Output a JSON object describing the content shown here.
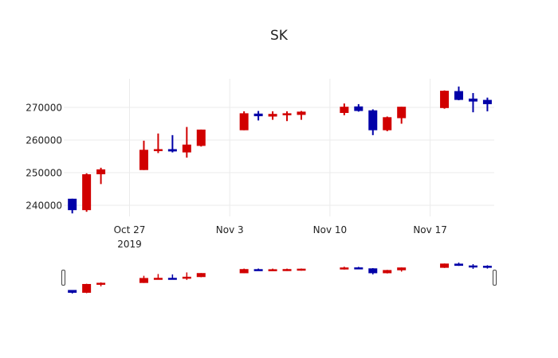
{
  "chart_data": {
    "type": "candlestick",
    "title": "SK",
    "xlabel": "",
    "ylabel": "",
    "ylim": [
      236500,
      279500
    ],
    "y_ticks": [
      240000,
      250000,
      260000,
      270000
    ],
    "y_tick_labels": [
      "240000",
      "250000",
      "260000",
      "270000"
    ],
    "x_ticks": [
      "2019-10-27",
      "2019-11-03",
      "2019-11-10",
      "2019-11-17"
    ],
    "x_tick_labels": [
      [
        "Oct 27",
        "2019"
      ],
      [
        "Nov 3"
      ],
      [
        "Nov 10"
      ],
      [
        "Nov 17"
      ]
    ],
    "grid": true,
    "legend": null,
    "increasing_color": "#d10000",
    "decreasing_color": "#0000a8",
    "rangeslider": true,
    "series": [
      {
        "date": "2019-10-23",
        "open": 242000,
        "high": 242000,
        "low": 237500,
        "close": 238500
      },
      {
        "date": "2019-10-24",
        "open": 238500,
        "high": 249800,
        "low": 238000,
        "close": 249500
      },
      {
        "date": "2019-10-25",
        "open": 249500,
        "high": 251500,
        "low": 246500,
        "close": 251000
      },
      {
        "date": "2019-10-28",
        "open": 250800,
        "high": 259800,
        "low": 250800,
        "close": 257000
      },
      {
        "date": "2019-10-29",
        "open": 256800,
        "high": 262000,
        "low": 256000,
        "close": 257200
      },
      {
        "date": "2019-10-30",
        "open": 257200,
        "high": 261500,
        "low": 256200,
        "close": 256500
      },
      {
        "date": "2019-10-31",
        "open": 256200,
        "high": 264000,
        "low": 254600,
        "close": 258600
      },
      {
        "date": "2019-11-01",
        "open": 258200,
        "high": 263200,
        "low": 258000,
        "close": 263200
      },
      {
        "date": "2019-11-04",
        "open": 263000,
        "high": 268800,
        "low": 263000,
        "close": 268200
      },
      {
        "date": "2019-11-05",
        "open": 268100,
        "high": 268900,
        "low": 266000,
        "close": 267300
      },
      {
        "date": "2019-11-06",
        "open": 267200,
        "high": 268800,
        "low": 266200,
        "close": 268000
      },
      {
        "date": "2019-11-07",
        "open": 267700,
        "high": 268800,
        "low": 265800,
        "close": 268200
      },
      {
        "date": "2019-11-08",
        "open": 267700,
        "high": 268900,
        "low": 266200,
        "close": 268700
      },
      {
        "date": "2019-11-11",
        "open": 268300,
        "high": 271200,
        "low": 267600,
        "close": 270200
      },
      {
        "date": "2019-11-12",
        "open": 270300,
        "high": 271000,
        "low": 268700,
        "close": 268900
      },
      {
        "date": "2019-11-13",
        "open": 269100,
        "high": 269400,
        "low": 261500,
        "close": 263000
      },
      {
        "date": "2019-11-14",
        "open": 263000,
        "high": 267200,
        "low": 262700,
        "close": 267000
      },
      {
        "date": "2019-11-15",
        "open": 266700,
        "high": 270200,
        "low": 265000,
        "close": 270200
      },
      {
        "date": "2019-11-18",
        "open": 269800,
        "high": 275200,
        "low": 269600,
        "close": 275100
      },
      {
        "date": "2019-11-19",
        "open": 275000,
        "high": 276400,
        "low": 272200,
        "close": 272300
      },
      {
        "date": "2019-11-20",
        "open": 272700,
        "high": 274400,
        "low": 268500,
        "close": 271800
      },
      {
        "date": "2019-11-21",
        "open": 272300,
        "high": 273000,
        "low": 268800,
        "close": 271000
      }
    ]
  }
}
